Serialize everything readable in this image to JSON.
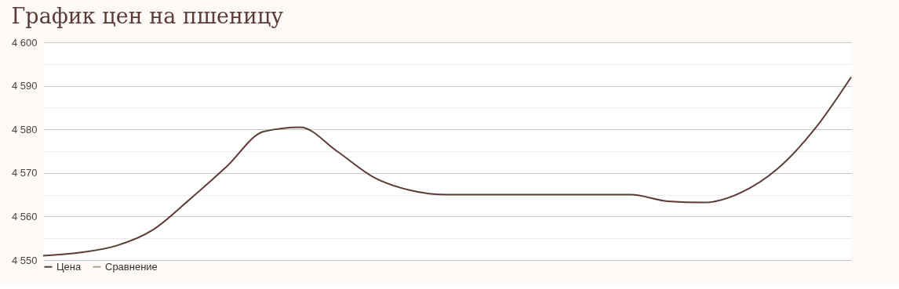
{
  "chart_data": {
    "type": "line",
    "title": "График цен на пшеницу",
    "categories": [
      null,
      null,
      null,
      null,
      null,
      null,
      null,
      null,
      null,
      null,
      null,
      null,
      null,
      null,
      null,
      null,
      null,
      null,
      null,
      null,
      null,
      null,
      null
    ],
    "series": [
      {
        "name": "Цена",
        "color": "#5b3b37",
        "values": [
          4551,
          4551.7,
          4553.3,
          4557,
          4564,
          4571.5,
          4579.5,
          4580.5,
          4575,
          4569,
          4566,
          4565,
          4565,
          4565,
          4565,
          4565,
          4565,
          4563.5,
          4563.2,
          4565.5,
          4571,
          4580,
          4592
        ]
      },
      {
        "name": "Сравнение",
        "color": "#a3a98f",
        "values": [
          null,
          null,
          null,
          null,
          null,
          null,
          null,
          null,
          null,
          null,
          null,
          null,
          null,
          null,
          null,
          null,
          null,
          null,
          null,
          null,
          null,
          null,
          null
        ]
      }
    ],
    "ylim": [
      4550,
      4600
    ],
    "yticks": [
      {
        "value": 4550,
        "label": "4 550"
      },
      {
        "value": 4555,
        "label": null
      },
      {
        "value": 4560,
        "label": "4 560"
      },
      {
        "value": 4565,
        "label": null
      },
      {
        "value": 4570,
        "label": "4 570"
      },
      {
        "value": 4575,
        "label": null
      },
      {
        "value": 4580,
        "label": "4 580"
      },
      {
        "value": 4585,
        "label": null
      },
      {
        "value": 4590,
        "label": "4 590"
      },
      {
        "value": 4595,
        "label": null
      },
      {
        "value": 4600,
        "label": "4 600"
      }
    ],
    "grid": "y",
    "legend": "bottom",
    "tick_labels": "y",
    "marker": "none",
    "line_style": "solid"
  }
}
